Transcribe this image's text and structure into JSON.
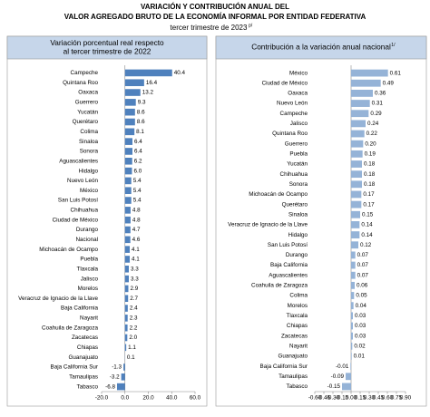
{
  "header": {
    "title": [
      "VARIACIÓN Y CONTRIBUCIÓN ANUAL DEL",
      "VALOR AGREGADO BRUTO DE LA ECONOMÍA INFORMAL POR ENTIDAD FEDERATIVA"
    ],
    "subtitle": "tercer trimestre de 2023",
    "subtitle_superscript": "p/"
  },
  "chart_data": [
    {
      "type": "bar",
      "orientation": "horizontal",
      "title": [
        "Variación porcentual real respecto",
        "al tercer trimestre de 2022"
      ],
      "color": "#4f81bd",
      "categories": [
        "Campeche",
        "Quintana Roo",
        "Oaxaca",
        "Guerrero",
        "Yucatán",
        "Querétaro",
        "Colima",
        "Sinaloa",
        "Sonora",
        "Aguascalientes",
        "Hidalgo",
        "Nuevo León",
        "México",
        "San Luis Potosí",
        "Chihuahua",
        "Ciudad de México",
        "Durango",
        "Nacional",
        "Michoacán de Ocampo",
        "Puebla",
        "Tlaxcala",
        "Jalisco",
        "Morelos",
        "Veracruz de Ignacio de la Llave",
        "Baja California",
        "Nayarit",
        "Coahuila de Zaragoza",
        "Zacatecas",
        "Chiapas",
        "Guanajuato",
        "Baja California Sur",
        "Tamaulipas",
        "Tabasco"
      ],
      "values": [
        40.4,
        16.4,
        13.2,
        9.3,
        8.6,
        8.6,
        8.1,
        6.4,
        6.4,
        6.2,
        6.0,
        5.4,
        5.4,
        5.4,
        4.8,
        4.8,
        4.7,
        4.6,
        4.1,
        4.1,
        3.3,
        3.3,
        2.9,
        2.7,
        2.4,
        2.3,
        2.2,
        2.0,
        1.1,
        0.1,
        -1.3,
        -3.2,
        -6.8
      ],
      "value_labels": [
        "40.4",
        "16.4",
        "13.2",
        "9.3",
        "8.6",
        "8.6",
        "8.1",
        "6.4",
        "6.4",
        "6.2",
        "6.0",
        "5.4",
        "5.4",
        "5.4",
        "4.8",
        "4.8",
        "4.7",
        "4.6",
        "4.1",
        "4.1",
        "3.3",
        "3.3",
        "2.9",
        "2.7",
        "2.4",
        "2.3",
        "2.2",
        "2.0",
        "1.1",
        "0.1",
        "-1.3",
        "-3.2",
        "-6.8"
      ],
      "xlim": [
        -20,
        60
      ],
      "xticks": [
        {
          "value": -20,
          "label": "-20.0"
        },
        {
          "value": 0,
          "label": "0.0"
        },
        {
          "value": 20,
          "label": "20.0"
        },
        {
          "value": 40,
          "label": "40.0"
        },
        {
          "value": 60,
          "label": "60.0"
        }
      ]
    },
    {
      "type": "bar",
      "orientation": "horizontal",
      "title": [
        "Contribución a la variación anual nacional"
      ],
      "title_superscript": "1/",
      "color": "#95b3d7",
      "categories": [
        "México",
        "Ciudad de México",
        "Oaxaca",
        "Nuevo León",
        "Campeche",
        "Jalisco",
        "Quintana Roo",
        "Guerrero",
        "Puebla",
        "Yucatán",
        "Chihuahua",
        "Sonora",
        "Michoacán de Ocampo",
        "Querétaro",
        "Sinaloa",
        "Veracruz de Ignacio de la Llave",
        "Hidalgo",
        "San Luis Potosí",
        "Durango",
        "Baja California",
        "Aguascalientes",
        "Coahuila de Zaragoza",
        "Colima",
        "Morelos",
        "Tlaxcala",
        "Chiapas",
        "Zacatecas",
        "Nayarit",
        "Guanajuato",
        "Baja California Sur",
        "Tamaulipas",
        "Tabasco"
      ],
      "values": [
        0.61,
        0.49,
        0.36,
        0.31,
        0.29,
        0.24,
        0.22,
        0.2,
        0.19,
        0.18,
        0.18,
        0.18,
        0.17,
        0.17,
        0.15,
        0.14,
        0.14,
        0.12,
        0.07,
        0.07,
        0.07,
        0.06,
        0.05,
        0.04,
        0.03,
        0.03,
        0.03,
        0.02,
        0.01,
        -0.01,
        -0.09,
        -0.15
      ],
      "value_labels": [
        "0.61",
        "0.49",
        "0.36",
        "0.31",
        "0.29",
        "0.24",
        "0.22",
        "0.20",
        "0.19",
        "0.18",
        "0.18",
        "0.18",
        "0.17",
        "0.17",
        "0.15",
        "0.14",
        "0.14",
        "0.12",
        "0.07",
        "0.07",
        "0.07",
        "0.06",
        "0.05",
        "0.04",
        "0.03",
        "0.03",
        "0.03",
        "0.02",
        "0.01",
        "-0.01",
        "-0.09",
        "-0.15"
      ],
      "xlim": [
        -0.6,
        0.9
      ],
      "xticks": [
        {
          "value": -0.6,
          "label": "-0.60"
        },
        {
          "value": -0.45,
          "label": "-0.45"
        },
        {
          "value": -0.3,
          "label": "-0.30"
        },
        {
          "value": -0.15,
          "label": "-0.15"
        },
        {
          "value": 0,
          "label": "0.00"
        },
        {
          "value": 0.15,
          "label": "0.15"
        },
        {
          "value": 0.3,
          "label": "0.30"
        },
        {
          "value": 0.45,
          "label": "0.45"
        },
        {
          "value": 0.6,
          "label": "0.60"
        },
        {
          "value": 0.75,
          "label": "0.75"
        },
        {
          "value": 0.9,
          "label": "0.90"
        }
      ]
    }
  ]
}
